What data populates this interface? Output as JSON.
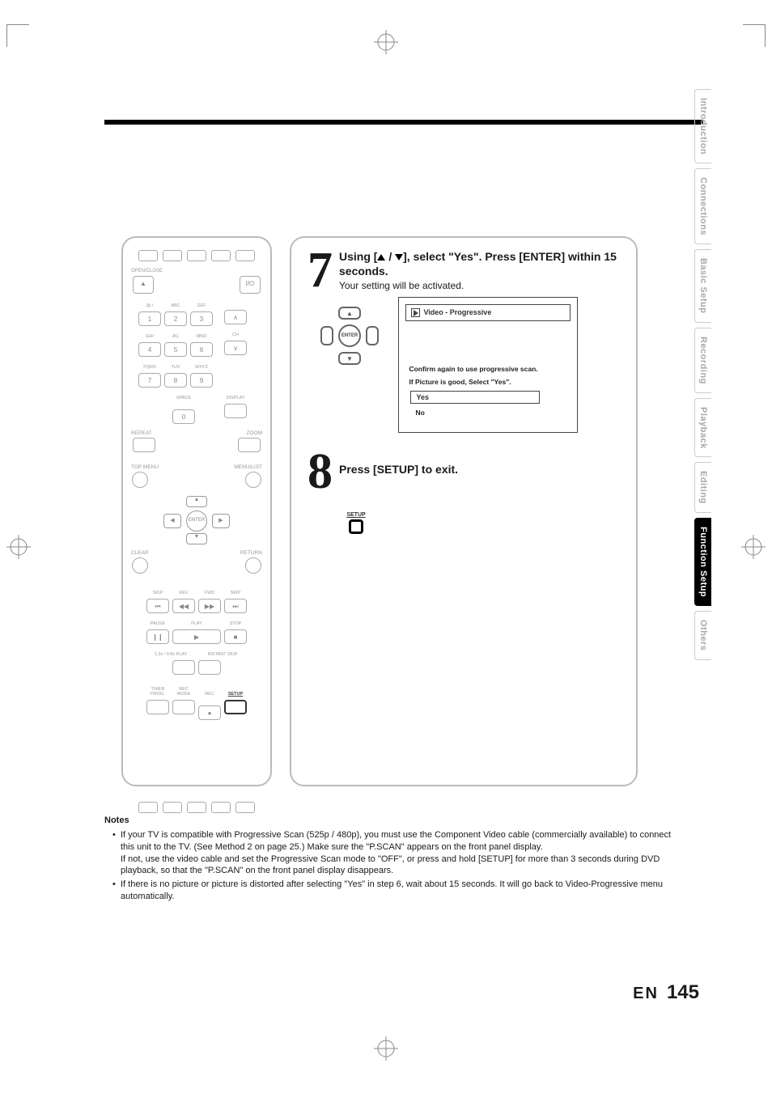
{
  "page": {
    "lang": "EN",
    "number": "145"
  },
  "sidetabs": [
    "Introduction",
    "Connections",
    "Basic Setup",
    "Recording",
    "Playback",
    "Editing",
    "Function Setup",
    "Others"
  ],
  "active_tab_index": 6,
  "colors": {
    "text": "#1a1a1a",
    "muted": "#a8a8a8",
    "border": "#bbb",
    "black": "#000"
  },
  "step7": {
    "num": "7",
    "heading_pre": "Using [",
    "heading_mid": " / ",
    "heading_post": "], select \"Yes\". Press [ENTER] within 15 seconds.",
    "sub": "Your setting will be activated.",
    "enter_label": "ENTER",
    "osd": {
      "title": "Video - Progressive",
      "line1": "Confirm again to use progressive scan.",
      "line2": "If Picture is good, Select \"Yes\".",
      "opt_yes": "Yes",
      "opt_no": "No"
    }
  },
  "step8": {
    "num": "8",
    "heading": "Press [SETUP] to exit.",
    "setup_label": "SETUP"
  },
  "remote": {
    "open_close": "OPEN/CLOSE",
    "power": "I/⏻",
    "num_labels": [
      "@./",
      "ABC",
      "DEF",
      "GHI",
      "JKL",
      "MNO",
      "PQRS",
      "TUV",
      "WXYZ"
    ],
    "nums": [
      "1",
      "2",
      "3",
      "4",
      "5",
      "6",
      "7",
      "8",
      "9",
      "0"
    ],
    "ch": "CH",
    "space": "SPACE",
    "display": "DISPLAY",
    "repeat": "REPEAT",
    "zoom": "ZOOM",
    "top_menu": "TOP MENU",
    "menu_list": "MENU/LIST",
    "enter": "ENTER",
    "clear": "CLEAR",
    "return": "RETURN",
    "skip": "SKIP",
    "rev": "REV",
    "fwd": "FWD",
    "pause": "PAUSE",
    "play": "PLAY",
    "stop": "STOP",
    "rate_play": "1.3x / 0.8x PLAY",
    "instant_skip": "INSTANT SKIP",
    "timer": "TIMER PROG.",
    "recmode": "REC MODE",
    "rec": "REC",
    "setup": "SETUP"
  },
  "notes": {
    "heading": "Notes",
    "items": [
      "If your TV is compatible with Progressive Scan (525p / 480p), you must use the Component Video cable (commercially available) to connect this unit to the TV. (See Method 2 on page 25.) Make sure the \"P.SCAN\" appears on the front panel display.\nIf not, use the video cable and set the Progressive Scan mode to \"OFF\", or press and hold [SETUP] for more than 3 seconds during DVD playback, so that the \"P.SCAN\" on the front panel display disappears.",
      "If there is no picture or picture is distorted after selecting \"Yes\" in step 6, wait about 15 seconds. It will go back to Video-Progressive menu automatically."
    ]
  }
}
